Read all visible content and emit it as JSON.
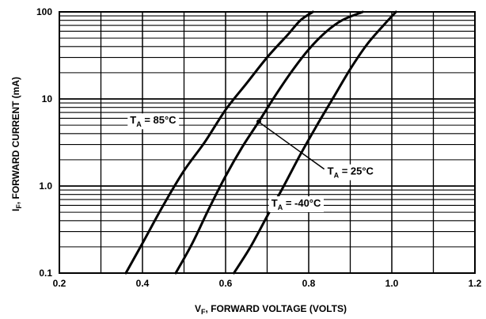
{
  "chart_data": {
    "type": "line",
    "title": "",
    "xlabel": {
      "main": "V",
      "sub": "F",
      "rest": ", FORWARD VOLTAGE (VOLTS)"
    },
    "ylabel": {
      "main": "I",
      "sub": "F",
      "rest": ", FORWARD CURRENT (mA)"
    },
    "x_scale": "linear",
    "y_scale": "log",
    "xlim": [
      0.2,
      1.2
    ],
    "ylim": [
      0.1,
      100
    ],
    "x_ticks": [
      0.2,
      0.4,
      0.6,
      0.8,
      1.0,
      1.2
    ],
    "x_tick_labels": [
      "0.2",
      "0.4",
      "0.6",
      "0.8",
      "1.0",
      "1.2"
    ],
    "y_ticks": [
      0.1,
      1,
      10,
      100
    ],
    "y_tick_labels": [
      "0.1",
      "1.0",
      "10",
      "100"
    ],
    "grid": true,
    "x_minor_step": 0.1,
    "series": [
      {
        "x": [
          0.36,
          0.4,
          0.45,
          0.5,
          0.55,
          0.6,
          0.65,
          0.7,
          0.75,
          0.78,
          0.81
        ],
        "y": [
          0.1,
          0.22,
          0.6,
          1.5,
          3.2,
          7.5,
          15,
          30,
          55,
          80,
          100
        ]
      },
      {
        "x": [
          0.48,
          0.52,
          0.56,
          0.6,
          0.64,
          0.68,
          0.72,
          0.76,
          0.8,
          0.84,
          0.88,
          0.93
        ],
        "y": [
          0.1,
          0.22,
          0.55,
          1.3,
          2.8,
          5.5,
          11,
          21,
          37,
          58,
          80,
          100
        ]
      },
      {
        "x": [
          0.62,
          0.66,
          0.7,
          0.74,
          0.78,
          0.82,
          0.86,
          0.9,
          0.94,
          0.98,
          1.01
        ],
        "y": [
          0.1,
          0.2,
          0.45,
          1.0,
          2.3,
          5.0,
          10.5,
          22,
          42,
          70,
          100
        ]
      }
    ],
    "annotations": [
      {
        "prefix": "T",
        "sub": "A",
        "value": " = 85°C",
        "label_x": 0.37,
        "label_y": 5.2,
        "arrow": false
      },
      {
        "prefix": "T",
        "sub": "A",
        "value": " = 25°C",
        "label_x": 0.845,
        "label_y": 1.35,
        "arrow": true,
        "arrow_to_x": 0.68,
        "arrow_to_y": 5.5
      },
      {
        "prefix": "T",
        "sub": "A",
        "value": " = -40°C",
        "label_x": 0.71,
        "label_y": 0.58,
        "arrow": false
      }
    ]
  }
}
